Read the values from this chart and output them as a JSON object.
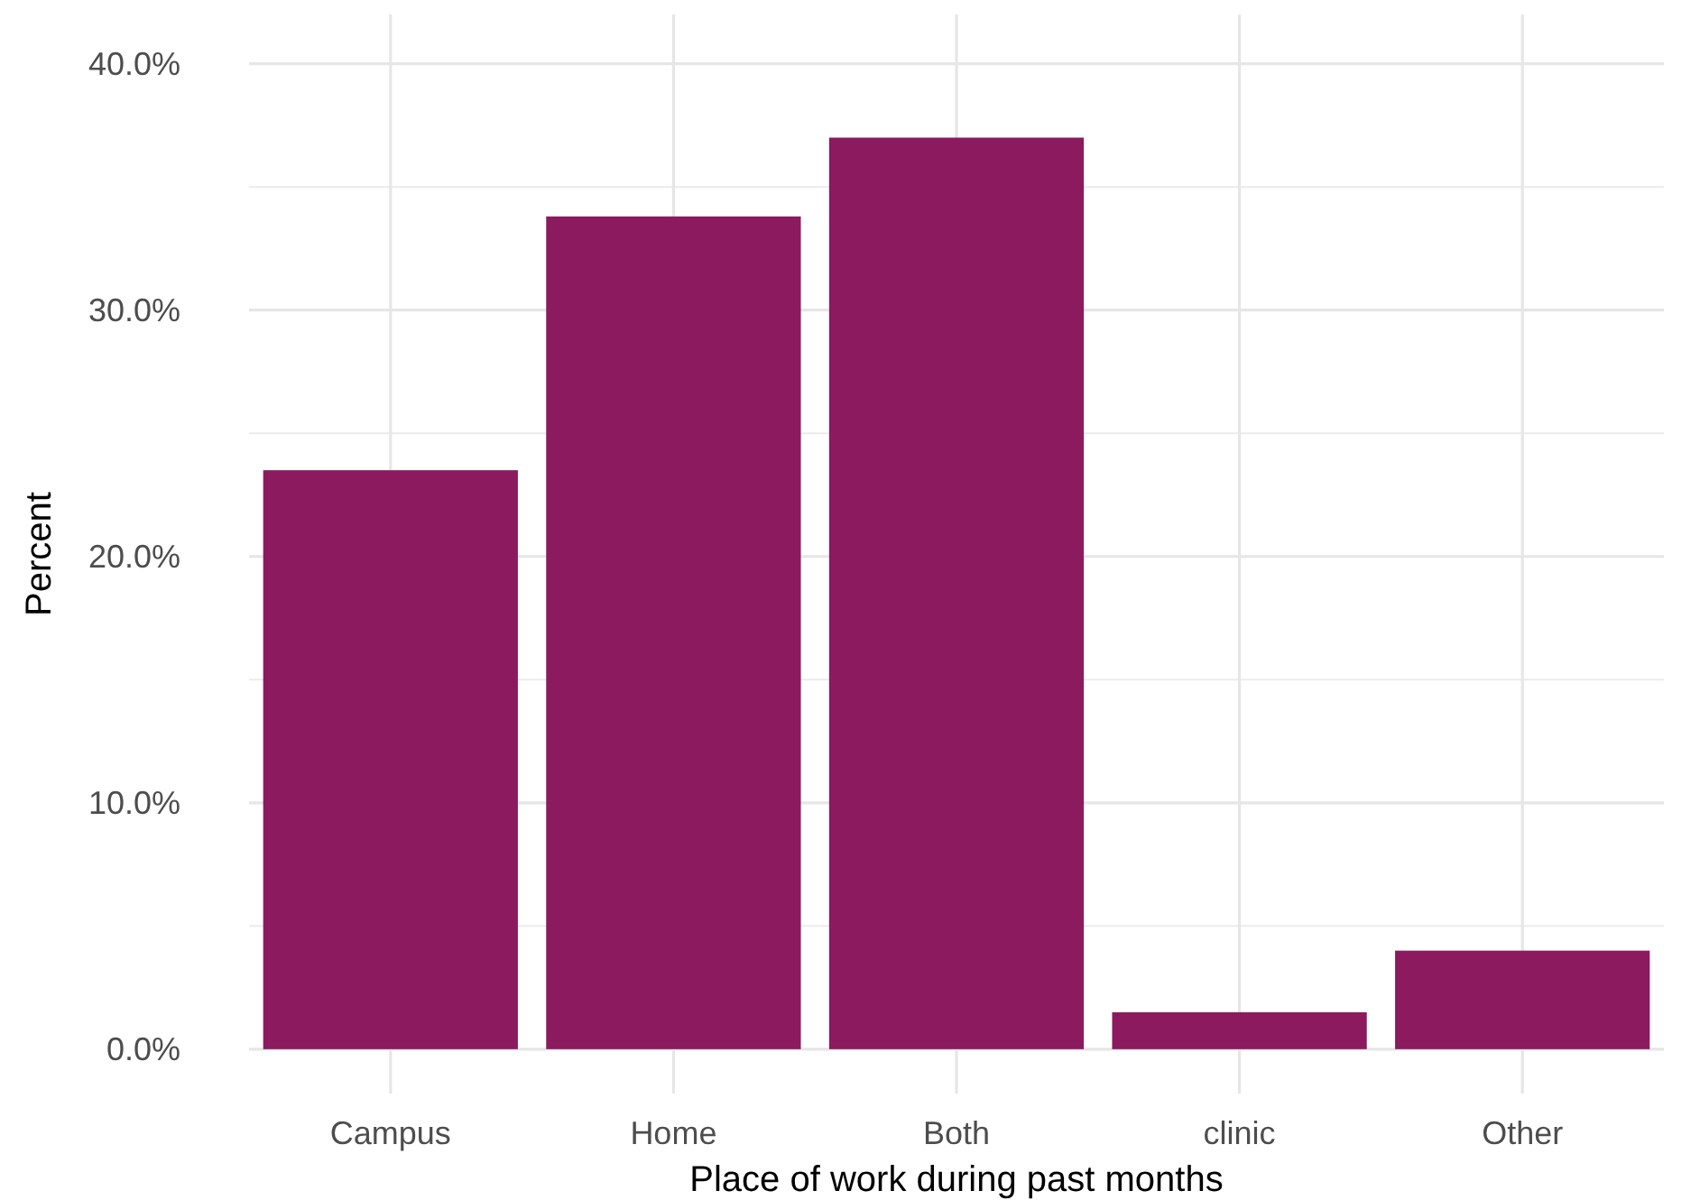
{
  "chart_data": {
    "type": "bar",
    "xlabel": "Place of work during past months",
    "ylabel": "Percent",
    "categories": [
      "Campus",
      "Home",
      "Both",
      "clinic",
      "Other"
    ],
    "values": [
      23.5,
      33.8,
      37.0,
      1.5,
      4.0
    ],
    "color": "#8b1a5e",
    "ylim": [
      -1.8,
      42
    ],
    "yticks": [
      {
        "value": 0,
        "label": "0.0%"
      },
      {
        "value": 10,
        "label": "10.0%"
      },
      {
        "value": 20,
        "label": "20.0%"
      },
      {
        "value": 30,
        "label": "30.0%"
      },
      {
        "value": 40,
        "label": "40.0%"
      }
    ],
    "grid": true
  }
}
